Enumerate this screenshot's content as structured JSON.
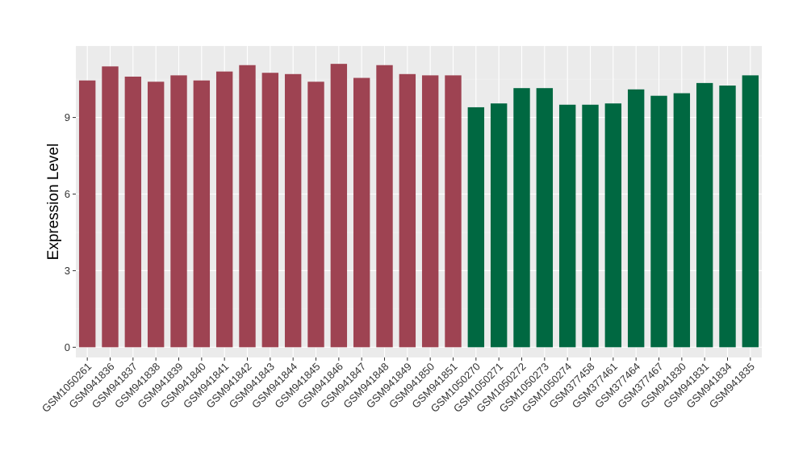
{
  "chart_data": {
    "type": "bar",
    "title": "",
    "xlabel": "",
    "ylabel": "Expression Level",
    "ylim": [
      -0.4,
      11.8
    ],
    "yticks": [
      0,
      3,
      6,
      9
    ],
    "grid": true,
    "background": "#ebebeb",
    "colors": {
      "group1": "#9e4352",
      "group2": "#006841"
    },
    "categories": [
      "GSM1050261",
      "GSM941836",
      "GSM941837",
      "GSM941838",
      "GSM941839",
      "GSM941840",
      "GSM941841",
      "GSM941842",
      "GSM941843",
      "GSM941844",
      "GSM941845",
      "GSM941846",
      "GSM941847",
      "GSM941848",
      "GSM941849",
      "GSM941850",
      "GSM941851",
      "GSM1050270",
      "GSM1050271",
      "GSM1050272",
      "GSM1050273",
      "GSM1050274",
      "GSM377458",
      "GSM377461",
      "GSM377464",
      "GSM377467",
      "GSM941830",
      "GSM941831",
      "GSM941834",
      "GSM941835"
    ],
    "values": [
      10.45,
      11.0,
      10.6,
      10.4,
      10.65,
      10.45,
      10.8,
      11.05,
      10.75,
      10.7,
      10.4,
      11.1,
      10.55,
      11.05,
      10.7,
      10.65,
      10.65,
      9.4,
      9.55,
      10.15,
      10.15,
      9.5,
      9.5,
      9.55,
      10.1,
      9.85,
      9.95,
      10.35,
      10.25,
      10.65
    ],
    "group": [
      "group1",
      "group1",
      "group1",
      "group1",
      "group1",
      "group1",
      "group1",
      "group1",
      "group1",
      "group1",
      "group1",
      "group1",
      "group1",
      "group1",
      "group1",
      "group1",
      "group1",
      "group2",
      "group2",
      "group2",
      "group2",
      "group2",
      "group2",
      "group2",
      "group2",
      "group2",
      "group2",
      "group2",
      "group2",
      "group2"
    ]
  }
}
